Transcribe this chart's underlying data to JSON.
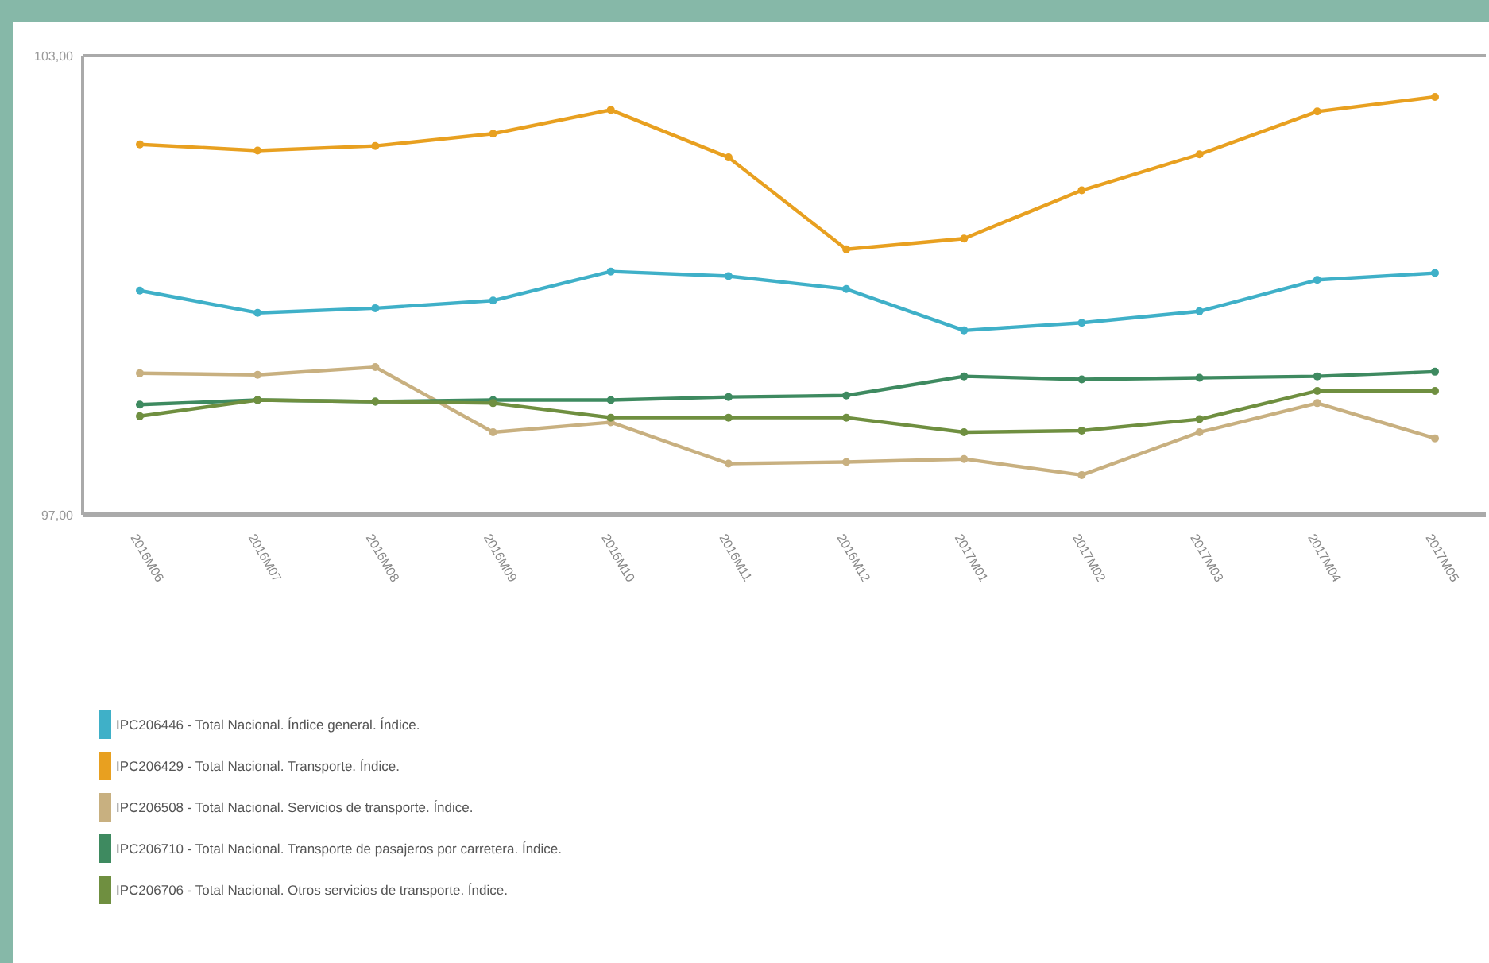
{
  "chart_data": {
    "type": "line",
    "categories": [
      "2016M06",
      "2016M07",
      "2016M08",
      "2016M09",
      "2016M10",
      "2016M11",
      "2016M12",
      "2017M01",
      "2017M02",
      "2017M03",
      "2017M04",
      "2017M05"
    ],
    "ylim": [
      97,
      103
    ],
    "yticks": [
      {
        "value": 97,
        "label": "97,00"
      },
      {
        "value": 103,
        "label": "103,00"
      }
    ],
    "legend": "bottom",
    "marker": "circle",
    "line_style": "solid",
    "series": [
      {
        "name": "IPC206446 - Total Nacional. Índice general. Índice.",
        "color": "#3fb0c8",
        "values": [
          99.93,
          99.64,
          99.7,
          99.8,
          100.18,
          100.12,
          99.95,
          99.41,
          99.51,
          99.66,
          100.07,
          100.16
        ]
      },
      {
        "name": "IPC206429 - Total Nacional. Transporte. Índice.",
        "color": "#e8a020",
        "values": [
          101.84,
          101.76,
          101.82,
          101.98,
          102.29,
          101.67,
          100.47,
          100.61,
          101.24,
          101.71,
          102.27,
          102.46
        ]
      },
      {
        "name": "IPC206508 - Total Nacional. Servicios de transporte. Índice.",
        "color": "#c8b080",
        "values": [
          98.85,
          98.83,
          98.93,
          98.08,
          98.21,
          97.67,
          97.69,
          97.73,
          97.52,
          98.08,
          98.46,
          98.0
        ]
      },
      {
        "name": "IPC206710 - Total Nacional. Transporte de pasajeros por carretera. Índice.",
        "color": "#3e8a60",
        "values": [
          98.44,
          98.5,
          98.48,
          98.5,
          98.5,
          98.54,
          98.56,
          98.81,
          98.77,
          98.79,
          98.81,
          98.87
        ]
      },
      {
        "name": "IPC206706 - Total Nacional. Otros servicios de transporte. Índice.",
        "color": "#6f8f40",
        "values": [
          98.29,
          98.5,
          98.48,
          98.46,
          98.27,
          98.27,
          98.27,
          98.08,
          98.1,
          98.25,
          98.62,
          98.62
        ]
      }
    ]
  }
}
